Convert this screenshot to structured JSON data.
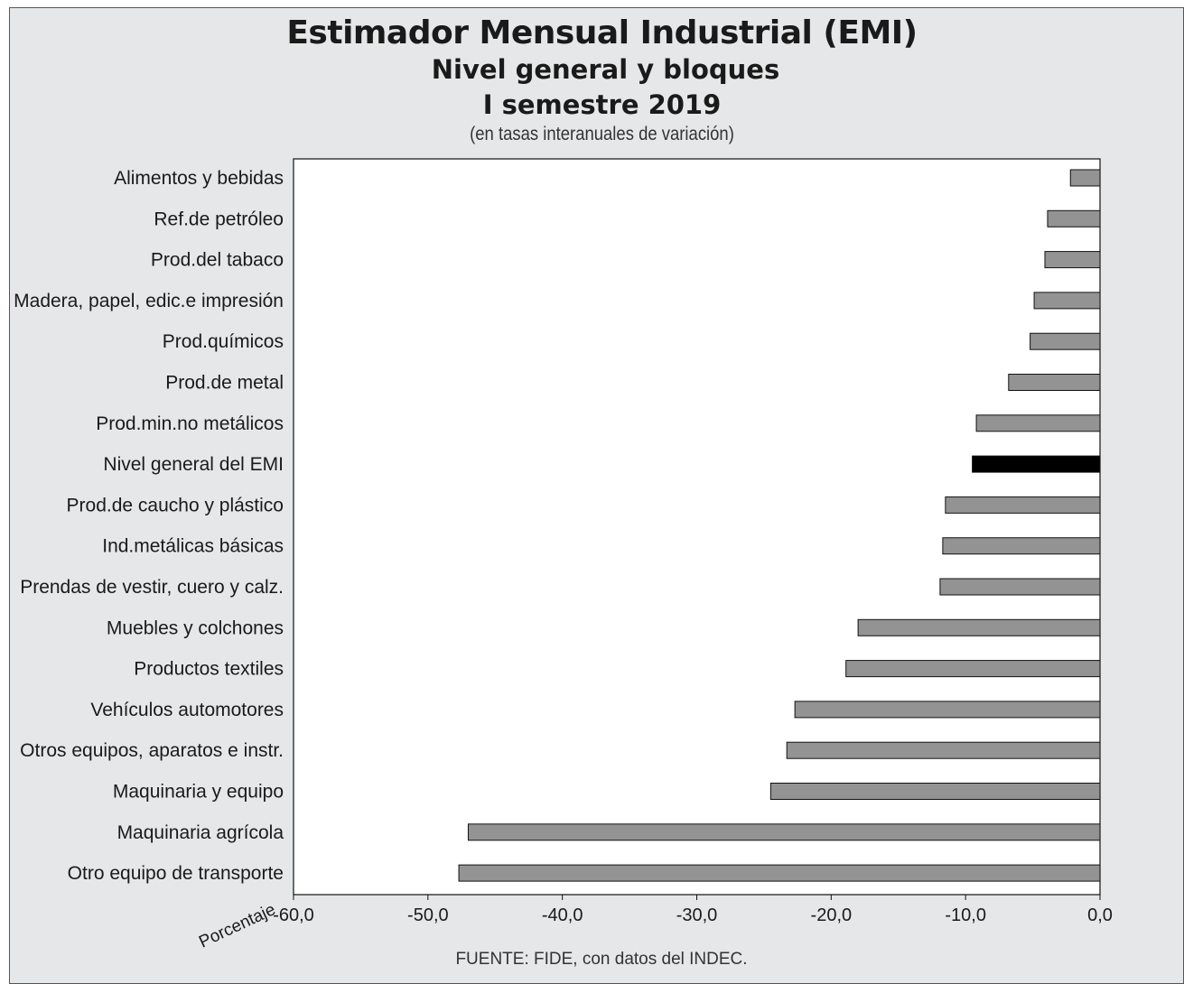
{
  "chart_data": {
    "type": "bar",
    "orientation": "horizontal",
    "title": "Estimador Mensual Industrial (EMI)",
    "subtitle": "Nivel general y bloques",
    "period": "I semestre 2019",
    "unit_note": "(en tasas interanuales de variación)",
    "xlabel": "Porcentaje",
    "xlim": [
      -60,
      0
    ],
    "xticks": [
      -60,
      -50,
      -40,
      -30,
      -20,
      -10,
      0
    ],
    "xtick_labels": [
      "-60,0",
      "-50,0",
      "-40,0",
      "-30,0",
      "-20,0",
      "-10,0",
      "0,0"
    ],
    "grid": false,
    "categories": [
      "Alimentos y bebidas",
      "Ref.de petróleo",
      "Prod.del tabaco",
      "Madera, papel, edic.e impresión",
      "Prod.químicos",
      "Prod.de metal",
      "Prod.min.no metálicos",
      "Nivel general del EMI",
      "Prod.de caucho y plástico",
      "Ind.metálicas básicas",
      "Prendas de vestir, cuero y calz.",
      "Muebles y colchones",
      "Productos textiles",
      "Vehículos automotores",
      "Otros equipos, aparatos e instr.",
      "Maquinaria y equipo",
      "Maquinaria agrícola",
      "Otro equipo de transporte"
    ],
    "values": [
      -2.2,
      -3.9,
      -4.1,
      -4.9,
      -5.2,
      -6.8,
      -9.2,
      -9.5,
      -11.5,
      -11.7,
      -11.9,
      -18.0,
      -18.9,
      -22.7,
      -23.3,
      -24.5,
      -47.0,
      -47.7
    ],
    "highlight_category": "Nivel general del EMI",
    "colors": {
      "bar": "#939393",
      "highlight": "#000000",
      "plot_bg": "#ffffff",
      "frame_bg": "#e6e7e8"
    },
    "source": "FUENTE: FIDE, con datos del INDEC."
  }
}
